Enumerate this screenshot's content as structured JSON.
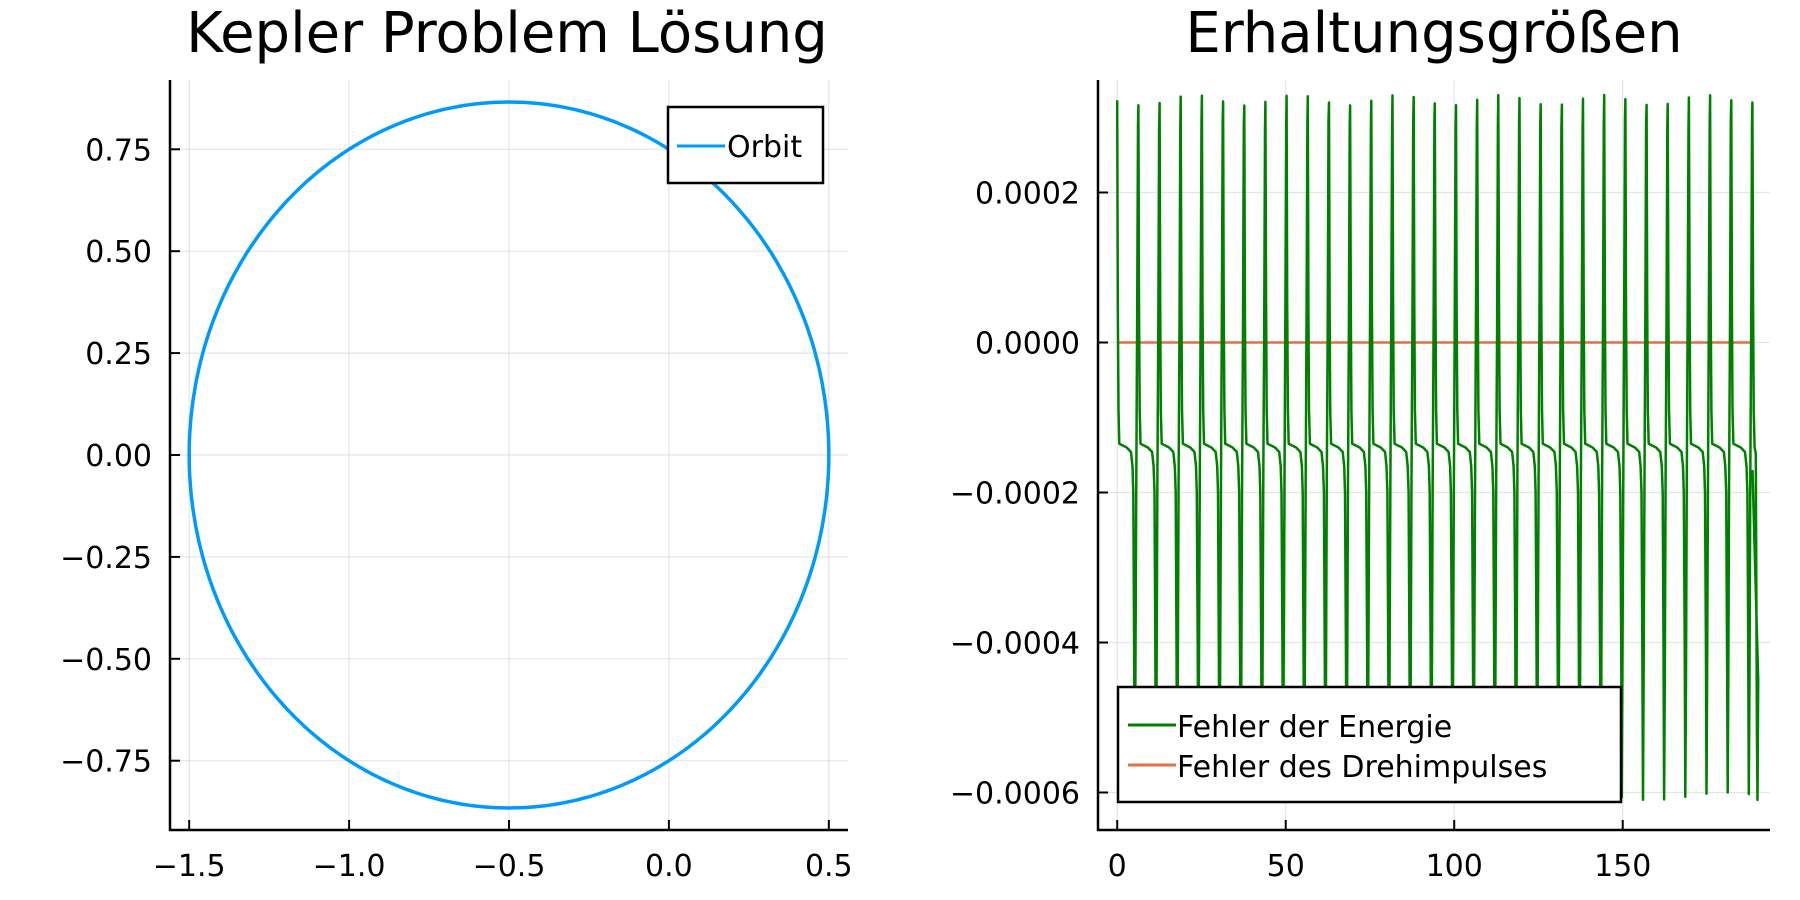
{
  "chart_data": [
    {
      "type": "line",
      "title": "Kepler Problem Lösung",
      "xlabel": "",
      "ylabel": "",
      "xlim": [
        -1.56,
        0.56
      ],
      "ylim": [
        -0.92,
        0.92
      ],
      "xticks": [
        -1.5,
        -1.0,
        -0.5,
        0.0,
        0.5
      ],
      "xtick_labels": [
        "−1.5",
        "−1.0",
        "−0.5",
        "0.0",
        "0.5"
      ],
      "yticks": [
        0.75,
        0.5,
        0.25,
        0.0,
        -0.25,
        -0.5,
        -0.75
      ],
      "ytick_labels": [
        "0.75",
        "0.50",
        "0.25",
        "0.00",
        "−0.25",
        "−0.50",
        "−0.75"
      ],
      "grid": true,
      "legend_position": "top-right",
      "series": [
        {
          "name": "Orbit",
          "color": "#009af9",
          "shape": "ellipse",
          "center": [
            -0.5,
            0.0
          ],
          "semi_axis_x": 1.0,
          "semi_axis_y": 0.866
        }
      ]
    },
    {
      "type": "line",
      "title": "Erhaltungsgrößen",
      "xlabel": "",
      "ylabel": "",
      "xlim": [
        -5.7,
        193.7
      ],
      "ylim": [
        -0.00065,
        0.00035
      ],
      "xticks": [
        0,
        50,
        100,
        150
      ],
      "xtick_labels": [
        "0",
        "50",
        "100",
        "150"
      ],
      "yticks": [
        0.0002,
        0.0,
        -0.0002,
        -0.0004,
        -0.0006
      ],
      "ytick_labels": [
        "0.0002",
        "0.0000",
        "−0.0002",
        "−0.0004",
        "−0.0006"
      ],
      "grid": true,
      "legend_position": "bottom-left",
      "series": [
        {
          "name": "Fehler der Energie",
          "color": "#008000",
          "pattern": "periodic spikes",
          "period": 6.283,
          "baseline": -0.00014,
          "peak_max": 0.00033,
          "trough_min": -0.00061,
          "x_end": 188.5,
          "end_value": -0.00017
        },
        {
          "name": "Fehler des Drehimpulses",
          "color": "#e26f46",
          "x": [
            0,
            188.5
          ],
          "y": [
            0.0,
            0.0
          ]
        }
      ]
    }
  ]
}
